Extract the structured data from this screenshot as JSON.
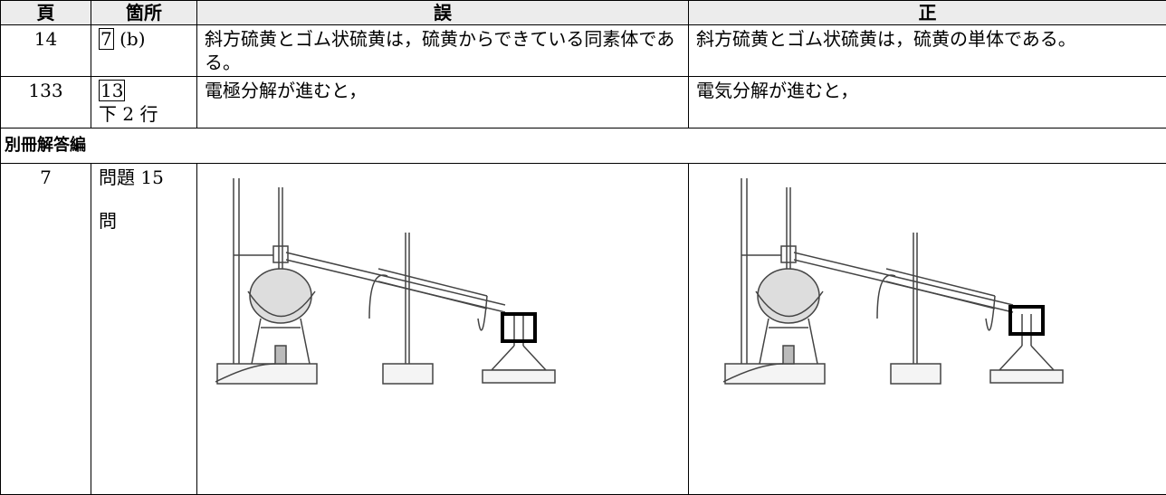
{
  "table": {
    "header": [
      "頁",
      "箇所",
      "誤",
      "正"
    ],
    "rows": [
      {
        "page": "14",
        "location": {
          "box": "7",
          "text": "(b)"
        },
        "wrong": "斜方硫黄とゴム状硫黄は，硫黄からできている同素体である。",
        "correct": "斜方硫黄とゴム状硫黄は，硫黄の単体である。"
      },
      {
        "page": "133",
        "location": {
          "box": "13",
          "text": "下 2 行"
        },
        "wrong": "電極分解が進むと，",
        "correct": "電気分解が進むと，"
      }
    ],
    "section": "別冊解答編",
    "section_rows": [
      {
        "page": "7",
        "location": {
          "line1": "問題 15",
          "line2": "問"
        }
      }
    ]
  }
}
